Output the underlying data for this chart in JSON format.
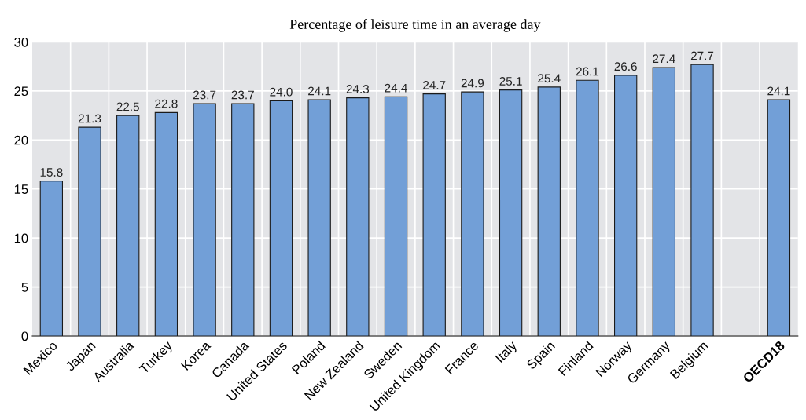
{
  "chart_data": {
    "type": "bar",
    "title": "Percentage of leisure time in an average day",
    "categories": [
      "Mexico",
      "Japan",
      "Australia",
      "Turkey",
      "Korea",
      "Canada",
      "United States",
      "Poland",
      "New Zealand",
      "Sweden",
      "United Kingdom",
      "France",
      "Italy",
      "Spain",
      "Finland",
      "Norway",
      "Germany",
      "Belgium",
      null,
      "OECD18"
    ],
    "values": [
      15.8,
      21.3,
      22.5,
      22.8,
      23.7,
      23.7,
      24.0,
      24.1,
      24.3,
      24.4,
      24.7,
      24.9,
      25.1,
      25.4,
      26.1,
      26.6,
      27.4,
      27.7,
      null,
      24.1
    ],
    "value_labels": [
      "15.8",
      "21.3",
      "22.5",
      "22.8",
      "23.7",
      "23.7",
      "24.0",
      "24.1",
      "24.3",
      "24.4",
      "24.7",
      "24.9",
      "25.1",
      "25.4",
      "26.1",
      "26.6",
      "27.4",
      "27.7",
      null,
      "24.1"
    ],
    "color": "#729fd7",
    "ylim": [
      0,
      30
    ],
    "yticks": [
      0,
      5,
      10,
      15,
      20,
      25,
      30
    ],
    "grid": true
  }
}
